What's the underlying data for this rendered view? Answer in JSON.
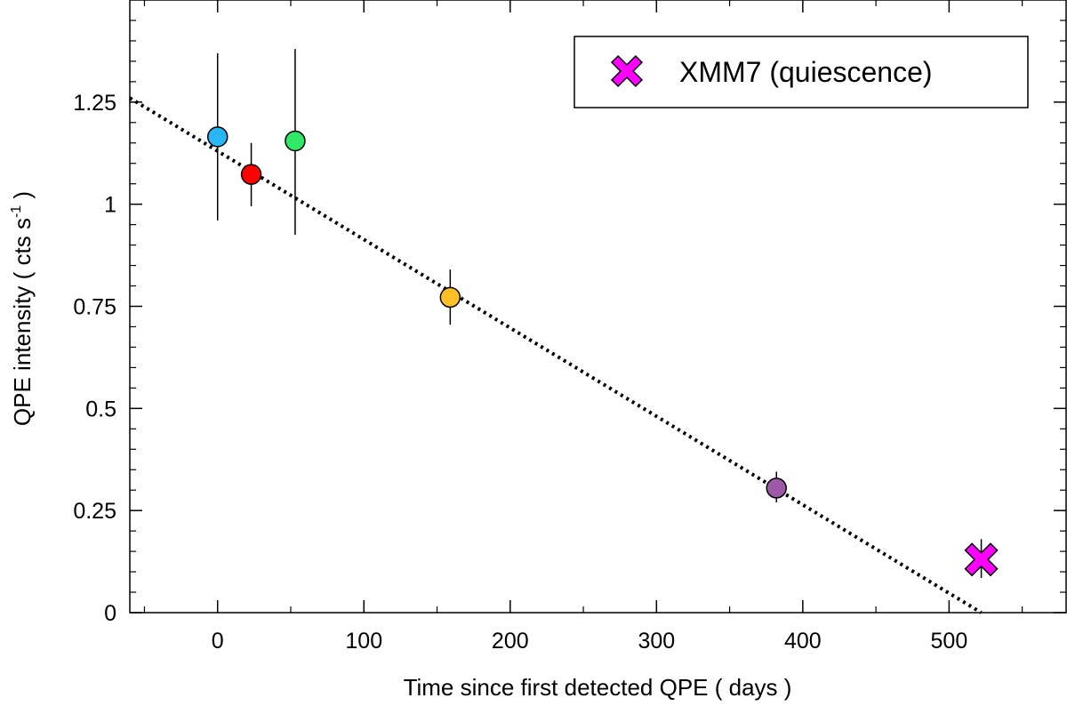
{
  "chart_data": {
    "type": "scatter",
    "title": "",
    "xlabel": "Time since first detected QPE  ( days )",
    "ylabel_main": "QPE intensity ( cts s",
    "ylabel_sup": "-1",
    "ylabel_end": " )",
    "xlim": [
      -60,
      580
    ],
    "ylim": [
      0,
      1.5
    ],
    "x_ticks": [
      0,
      100,
      200,
      300,
      400,
      500
    ],
    "x_tick_labels": [
      "0",
      "100",
      "200",
      "300",
      "400",
      "500"
    ],
    "x_minor_step": 50,
    "y_ticks": [
      0,
      0.25,
      0.5,
      0.75,
      1.0,
      1.25
    ],
    "y_tick_labels": [
      "0",
      "0.25",
      "0.5",
      "0.75",
      "1",
      "1.25"
    ],
    "y_minor_step": 0.05,
    "points": [
      {
        "x": 0,
        "y": 1.165,
        "err_low": 0.96,
        "err_high": 1.37,
        "color": "#29b6f6"
      },
      {
        "x": 23,
        "y": 1.073,
        "err_low": 0.995,
        "err_high": 1.15,
        "color": "#ff0000"
      },
      {
        "x": 53,
        "y": 1.155,
        "err_low": 0.925,
        "err_high": 1.38,
        "color": "#2ee866"
      },
      {
        "x": 159,
        "y": 0.772,
        "err_low": 0.705,
        "err_high": 0.84,
        "color": "#ffbf26"
      },
      {
        "x": 382,
        "y": 0.305,
        "err_low": 0.27,
        "err_high": 0.345,
        "color": "#9b59a6"
      }
    ],
    "special_point": {
      "x": 522,
      "y": 0.13,
      "err_low": 0.085,
      "err_high": 0.18,
      "color": "#ff00ff",
      "marker": "x-cross"
    },
    "fit_line": {
      "style": "dotted",
      "x0": -60,
      "y0": 1.26,
      "x1": 522,
      "y1": 0.0
    },
    "legend": {
      "position": "top-right",
      "entries": [
        {
          "label": "XMM7 (quiescence)",
          "marker": "x-cross",
          "color": "#ff00ff"
        }
      ]
    }
  }
}
